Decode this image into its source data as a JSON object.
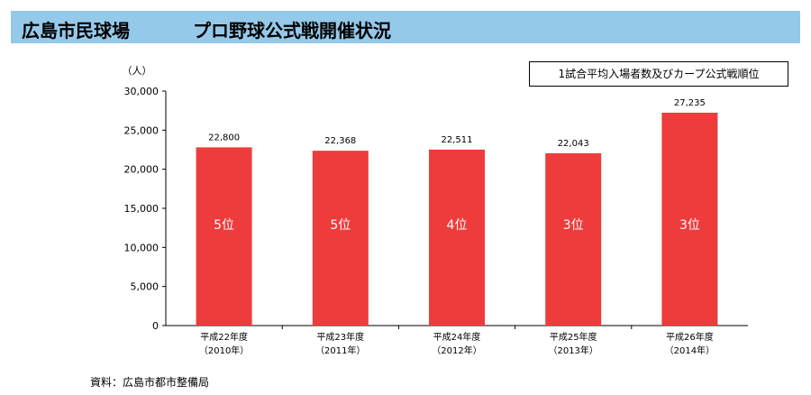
{
  "header": {
    "title": "広島市民球場",
    "subtitle": "プロ野球公式戦開催状況"
  },
  "legend": {
    "text": "1試合平均入場者数及びカープ公式戦順位"
  },
  "source": "資料：広島市都市整備局",
  "colors": {
    "header_bg": "#95c9ea",
    "bar": "#ee3b3b",
    "rank_text": "#ffffff"
  },
  "chart_data": {
    "type": "bar",
    "ylabel": "（人）",
    "ylim": [
      0,
      30000
    ],
    "yticks": [
      0,
      5000,
      10000,
      15000,
      20000,
      25000,
      30000
    ],
    "ytick_labels": [
      "0",
      "5,000",
      "10,000",
      "15,000",
      "20,000",
      "25,000",
      "30,000"
    ],
    "categories": [
      {
        "line1": "平成22年度",
        "line2": "（2010年）"
      },
      {
        "line1": "平成23年度",
        "line2": "（2011年）"
      },
      {
        "line1": "平成24年度",
        "line2": "（2012年）"
      },
      {
        "line1": "平成25年度",
        "line2": "（2013年）"
      },
      {
        "line1": "平成26年度",
        "line2": "（2014年）"
      }
    ],
    "values": [
      22800,
      22368,
      22511,
      22043,
      27235
    ],
    "value_labels": [
      "22,800",
      "22,368",
      "22,511",
      "22,043",
      "27,235"
    ],
    "rank_labels": [
      "5位",
      "5位",
      "4位",
      "3位",
      "3位"
    ],
    "grid": false
  }
}
